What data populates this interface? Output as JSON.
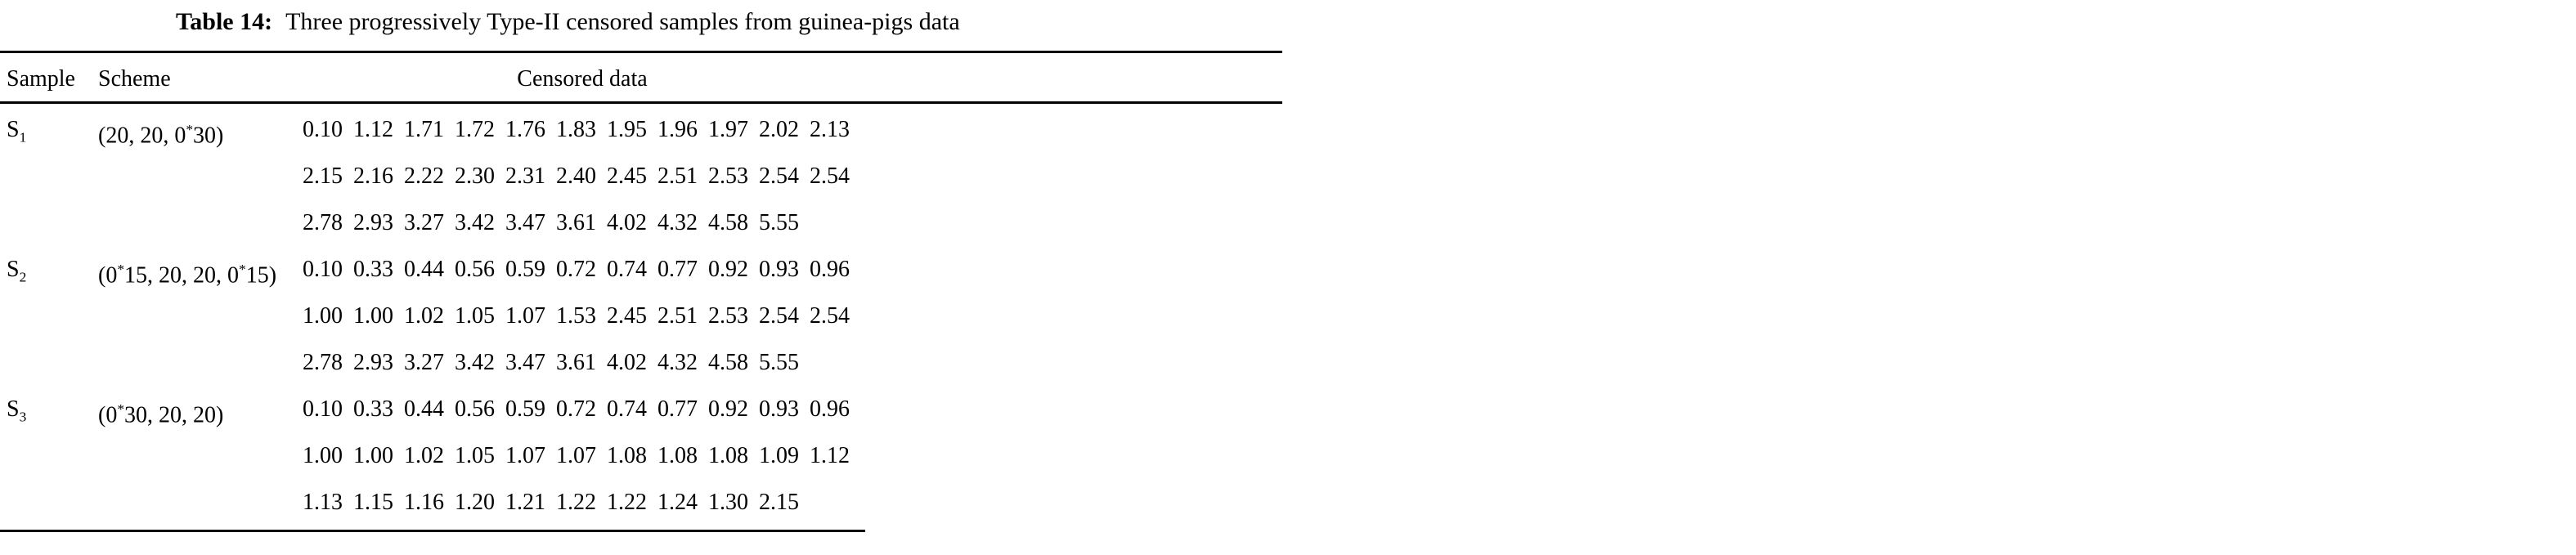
{
  "caption": {
    "label": "Table 14:",
    "text": "Three progressively Type-II censored samples from guinea-pigs data"
  },
  "header": {
    "sample": "Sample",
    "scheme": "Scheme",
    "censored": "Censored data"
  },
  "colors": {
    "text": "#000000",
    "background": "#ffffff",
    "rule": "#000000"
  },
  "table": {
    "type": "table",
    "columns": [
      "Sample",
      "Scheme",
      "Censored data"
    ],
    "groups": [
      {
        "sample_base": "S",
        "sample_sub": "1",
        "scheme": "(20, 20, 0*30)",
        "lines": [
          [
            "0.10",
            "1.12",
            "1.71",
            "1.72",
            "1.76",
            "1.83",
            "1.95",
            "1.96",
            "1.97",
            "2.02",
            "2.13"
          ],
          [
            "2.15",
            "2.16",
            "2.22",
            "2.30",
            "2.31",
            "2.40",
            "2.45",
            "2.51",
            "2.53",
            "2.54",
            "2.54"
          ],
          [
            "2.78",
            "2.93",
            "3.27",
            "3.42",
            "3.47",
            "3.61",
            "4.02",
            "4.32",
            "4.58",
            "5.55"
          ]
        ]
      },
      {
        "sample_base": "S",
        "sample_sub": "2",
        "scheme": "(0*15, 20, 20, 0*15)",
        "lines": [
          [
            "0.10",
            "0.33",
            "0.44",
            "0.56",
            "0.59",
            "0.72",
            "0.74",
            "0.77",
            "0.92",
            "0.93",
            "0.96"
          ],
          [
            "1.00",
            "1.00",
            "1.02",
            "1.05",
            "1.07",
            "1.53",
            "2.45",
            "2.51",
            "2.53",
            "2.54",
            "2.54"
          ],
          [
            "2.78",
            "2.93",
            "3.27",
            "3.42",
            "3.47",
            "3.61",
            "4.02",
            "4.32",
            "4.58",
            "5.55"
          ]
        ]
      },
      {
        "sample_base": "S",
        "sample_sub": "3",
        "scheme": "(0*30, 20, 20)",
        "lines": [
          [
            "0.10",
            "0.33",
            "0.44",
            "0.56",
            "0.59",
            "0.72",
            "0.74",
            "0.77",
            "0.92",
            "0.93",
            "0.96"
          ],
          [
            "1.00",
            "1.00",
            "1.02",
            "1.05",
            "1.07",
            "1.07",
            "1.08",
            "1.08",
            "1.08",
            "1.09",
            "1.12"
          ],
          [
            "1.13",
            "1.15",
            "1.16",
            "1.20",
            "1.21",
            "1.22",
            "1.22",
            "1.24",
            "1.30",
            "2.15"
          ]
        ]
      }
    ]
  }
}
